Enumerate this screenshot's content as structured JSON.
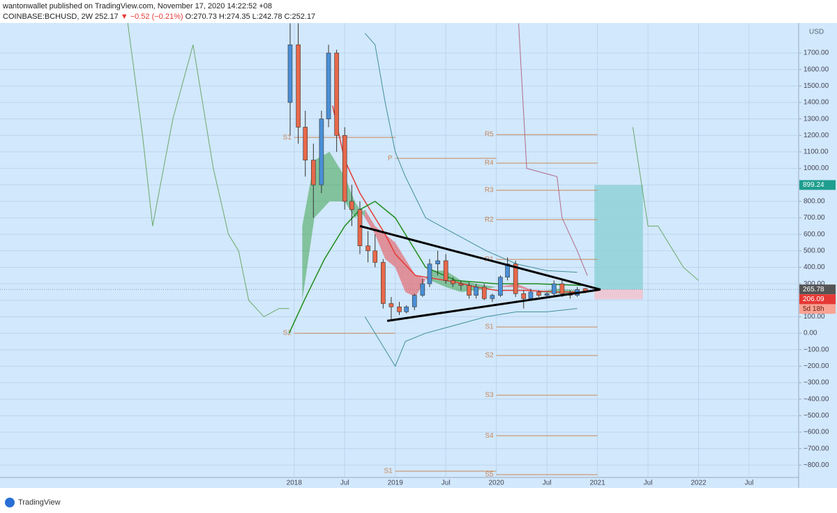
{
  "header": {
    "author": "wantonwallet published on TradingView.com, November 17, 2020 14:22:52 +08",
    "symbol": "COINBASE:BCHUSD, 2W",
    "last": "252.17",
    "change": "▼ −0.52 (−0.21%)",
    "ohlc": [
      "O:270.73",
      "H:274.35",
      "L:242.78",
      "C:252.17"
    ]
  },
  "footer": {
    "brand": "TradingView"
  },
  "chart_data": {
    "type": "candlestick",
    "y_unit": "USD",
    "xlim": [
      2015.09,
      2022.99
    ],
    "ylim": [
      -875,
      1882
    ],
    "grid": true,
    "xticks": [
      2018,
      {
        "value": 2018.5,
        "label": "Jul"
      },
      2019,
      {
        "value": 2019.5,
        "label": "Jul"
      },
      2020,
      {
        "value": 2020.5,
        "label": "Jul"
      },
      2021,
      {
        "value": 2021.5,
        "label": "Jul"
      },
      2022,
      {
        "value": 2022.5,
        "label": "Jul"
      }
    ],
    "yticks": [
      {
        "value": 1700,
        "label": "1700.00"
      },
      {
        "value": 1600,
        "label": "1600.00"
      },
      {
        "value": 1500,
        "label": "1500.00"
      },
      {
        "value": 1400,
        "label": "1400.00"
      },
      {
        "value": 1300,
        "label": "1300.00"
      },
      {
        "value": 1200,
        "label": "1200.00"
      },
      {
        "value": 1100,
        "label": "1100.00"
      },
      {
        "value": 1000,
        "label": "1000.00"
      },
      {
        "value": 900,
        "label": "900.00"
      },
      {
        "value": 800,
        "label": "800.00"
      },
      {
        "value": 700,
        "label": "700.00"
      },
      {
        "value": 600,
        "label": "600.00"
      },
      {
        "value": 500,
        "label": "500.00"
      },
      {
        "value": 400,
        "label": "400.00"
      },
      {
        "value": 300,
        "label": "300.00"
      },
      {
        "value": 200,
        "label": "200.00"
      },
      {
        "value": 100,
        "label": "100.00"
      },
      {
        "value": 0,
        "label": "0.00"
      },
      {
        "value": -100,
        "label": "−100.00"
      },
      {
        "value": -200,
        "label": "−200.00"
      },
      {
        "value": -300,
        "label": "−300.00"
      },
      {
        "value": -400,
        "label": "−400.00"
      },
      {
        "value": -500,
        "label": "−500.00"
      },
      {
        "value": -600,
        "label": "−600.00"
      },
      {
        "value": -700,
        "label": "−700.00"
      },
      {
        "value": -800,
        "label": "−800.00"
      }
    ],
    "candles": {
      "up_color": "#4a8fd6",
      "down_color": "#e8684a",
      "x": [
        2017.96,
        2018.04,
        2018.11,
        2018.19,
        2018.27,
        2018.34,
        2018.42,
        2018.5,
        2018.57,
        2018.65,
        2018.73,
        2018.8,
        2018.88,
        2018.96,
        2019.04,
        2019.11,
        2019.19,
        2019.27,
        2019.34,
        2019.42,
        2019.5,
        2019.57,
        2019.65,
        2019.73,
        2019.8,
        2019.88,
        2019.96,
        2020.04,
        2020.11,
        2020.19,
        2020.27,
        2020.34,
        2020.42,
        2020.5,
        2020.57,
        2020.65,
        2020.73,
        2020.8,
        2020.88
      ],
      "open": [
        1400,
        1750,
        1250,
        1050,
        900,
        1300,
        1700,
        1200,
        800,
        750,
        530,
        500,
        430,
        180,
        160,
        130,
        160,
        230,
        300,
        420,
        440,
        320,
        300,
        290,
        230,
        280,
        210,
        230,
        340,
        420,
        240,
        210,
        250,
        230,
        240,
        300,
        240,
        230,
        270.73
      ],
      "high": [
        1880,
        1880,
        1350,
        1150,
        1350,
        1750,
        1720,
        1250,
        900,
        800,
        620,
        600,
        450,
        220,
        190,
        170,
        240,
        330,
        450,
        500,
        480,
        340,
        320,
        310,
        300,
        300,
        240,
        350,
        460,
        440,
        260,
        270,
        260,
        250,
        320,
        320,
        260,
        280,
        274.35
      ],
      "low": [
        1200,
        1150,
        950,
        700,
        850,
        1250,
        1100,
        750,
        650,
        480,
        430,
        400,
        150,
        75,
        110,
        120,
        140,
        220,
        280,
        350,
        300,
        280,
        260,
        210,
        210,
        200,
        190,
        220,
        320,
        220,
        150,
        200,
        220,
        210,
        230,
        220,
        210,
        220,
        242.78
      ],
      "close": [
        1750,
        1250,
        1050,
        900,
        1300,
        1700,
        1200,
        800,
        750,
        530,
        500,
        430,
        180,
        160,
        130,
        160,
        230,
        300,
        420,
        440,
        320,
        300,
        290,
        230,
        280,
        210,
        230,
        340,
        420,
        240,
        210,
        250,
        230,
        240,
        300,
        240,
        230,
        265,
        252.17
      ]
    },
    "cloud": {
      "up_color": "#3fa34d",
      "down_color": "#e8484a",
      "x": [
        2018.08,
        2018.2,
        2018.35,
        2018.5,
        2018.6,
        2018.7,
        2018.8,
        2018.9,
        2019.0,
        2019.1,
        2019.2,
        2019.35,
        2019.5,
        2019.65,
        2019.8,
        2020.0,
        2020.2,
        2020.4,
        2020.6,
        2020.8
      ],
      "span_a": [
        650,
        1050,
        1100,
        950,
        800,
        700,
        600,
        450,
        400,
        250,
        220,
        380,
        380,
        320,
        300,
        280,
        280,
        250,
        270,
        260
      ],
      "span_b": [
        200,
        700,
        800,
        800,
        700,
        750,
        650,
        600,
        550,
        450,
        350,
        320,
        280,
        250,
        260,
        280,
        300,
        250,
        240,
        240
      ]
    },
    "lines": [
      {
        "color": "#e53935",
        "width": 1.5,
        "x": [
          2018.38,
          2018.5,
          2018.65,
          2018.8,
          2018.9,
          2019.0,
          2019.2,
          2019.4,
          2019.6,
          2019.8,
          2020.0,
          2020.3,
          2020.6,
          2020.85
        ],
        "values": [
          1380,
          1050,
          850,
          700,
          600,
          480,
          350,
          330,
          310,
          280,
          260,
          260,
          250,
          250
        ]
      },
      {
        "color": "#1e8c1e",
        "width": 1.5,
        "x": [
          2017.95,
          2018.1,
          2018.3,
          2018.5,
          2018.65,
          2018.8,
          2019.0,
          2019.3,
          2019.6,
          2020.0,
          2020.4,
          2020.85
        ],
        "values": [
          0,
          200,
          450,
          650,
          750,
          800,
          700,
          400,
          320,
          300,
          300,
          290
        ]
      },
      {
        "color": "#3f8f9c",
        "width": 1,
        "x": [
          2018.7,
          2018.8,
          2018.9,
          2019.0,
          2019.1,
          2019.3,
          2019.6,
          2019.9,
          2020.2,
          2020.5,
          2020.8
        ],
        "values": [
          1820,
          1750,
          1400,
          1100,
          950,
          700,
          600,
          500,
          420,
          380,
          370
        ]
      },
      {
        "color": "#3f8f9c",
        "width": 1,
        "x": [
          2018.7,
          2018.85,
          2019.0,
          2019.1,
          2019.3,
          2019.6,
          2019.9,
          2020.2,
          2020.5,
          2020.8
        ],
        "values": [
          100,
          -50,
          -200,
          -50,
          0,
          50,
          100,
          130,
          130,
          150
        ]
      },
      {
        "color": "#6aa86a",
        "width": 1,
        "x": [
          2016.35,
          2016.5,
          2016.6,
          2016.8,
          2017.0,
          2017.2,
          2017.35,
          2017.45,
          2017.55,
          2017.7,
          2017.85,
          2017.95,
          2020.0,
          2021.35,
          2021.5,
          2021.6,
          2021.85,
          2022.0
        ],
        "values": [
          1900,
          1200,
          650,
          1300,
          1750,
          1000,
          600,
          500,
          200,
          100,
          150,
          150,
          null,
          1250,
          650,
          650,
          400,
          320
        ]
      },
      {
        "color": "#b06a8a",
        "width": 1,
        "x": [
          2020.22,
          2020.3,
          2020.6,
          2020.65,
          2020.8,
          2020.9
        ],
        "values": [
          1880,
          1000,
          950,
          700,
          500,
          350
        ]
      }
    ],
    "trendlines": [
      {
        "x": [
          2018.65,
          2021.03
        ],
        "values": [
          650,
          265
        ]
      },
      {
        "x": [
          2018.92,
          2021.03
        ],
        "values": [
          75,
          265
        ]
      }
    ],
    "pivots": [
      {
        "label": "S1",
        "value": 1188,
        "from": 2018.0,
        "to": 2019.0
      },
      {
        "label": "S2",
        "value": 0,
        "from": 2018.0,
        "to": 2019.0
      },
      {
        "label": "P",
        "value": 1061,
        "from": 2019.0,
        "to": 2020.0
      },
      {
        "label": "S1",
        "value": -837,
        "from": 2019.0,
        "to": 2020.0
      },
      {
        "label": "R5",
        "value": 1205,
        "from": 2020.0,
        "to": 2021.0
      },
      {
        "label": "R4",
        "value": 1032,
        "from": 2020.0,
        "to": 2021.0
      },
      {
        "label": "R3",
        "value": 867,
        "from": 2020.0,
        "to": 2021.0
      },
      {
        "label": "R2",
        "value": 689,
        "from": 2020.0,
        "to": 2021.0
      },
      {
        "label": "R1",
        "value": 448,
        "from": 2020.0,
        "to": 2021.0
      },
      {
        "label": "S1",
        "value": 38,
        "from": 2020.0,
        "to": 2021.0
      },
      {
        "label": "S2",
        "value": -135,
        "from": 2020.0,
        "to": 2021.0
      },
      {
        "label": "S3",
        "value": -376,
        "from": 2020.0,
        "to": 2021.0
      },
      {
        "label": "S4",
        "value": -622,
        "from": 2020.0,
        "to": 2021.0
      },
      {
        "label": "S5",
        "value": -858,
        "from": 2020.0,
        "to": 2021.0
      }
    ],
    "position": {
      "from": 2020.97,
      "to": 2021.45,
      "entry": 265.78,
      "target": 899.24,
      "stop": 206.09,
      "countdown": "5d 18h"
    }
  }
}
